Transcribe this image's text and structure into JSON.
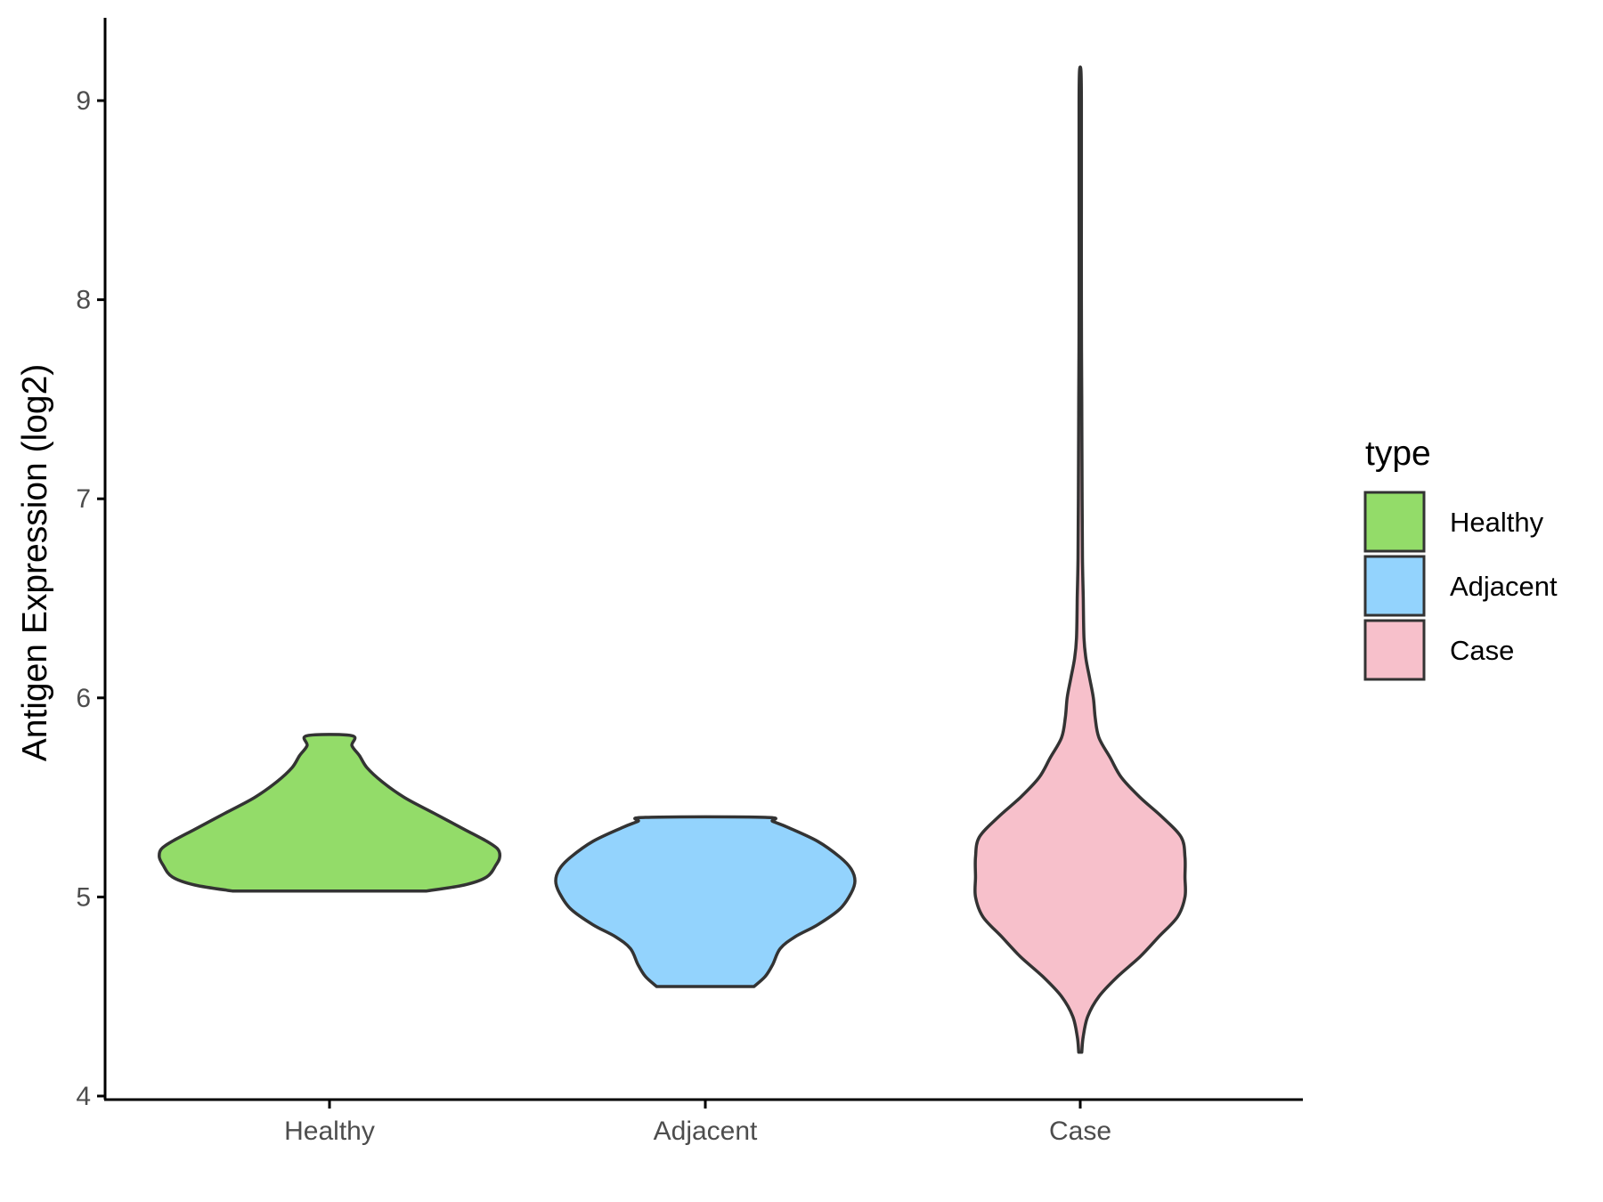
{
  "chart_data": {
    "type": "violin",
    "ylabel": "Antigen Expression (log2)",
    "xlabel": "",
    "ylim": [
      4,
      9.4
    ],
    "yticks": [
      4,
      5,
      6,
      7,
      8,
      9
    ],
    "categories": [
      "Healthy",
      "Adjacent",
      "Case"
    ],
    "grid": false,
    "legend": {
      "title": "type",
      "position": "right",
      "entries": [
        {
          "label": "Healthy",
          "color": "#93dc69"
        },
        {
          "label": "Adjacent",
          "color": "#93d3fd"
        },
        {
          "label": "Case",
          "color": "#f7c0cb"
        }
      ]
    },
    "series": [
      {
        "category": "Healthy",
        "color": "#93dc69",
        "min": 5.03,
        "max": 5.81,
        "profile": [
          [
            5.03,
            0.26
          ],
          [
            5.06,
            0.36
          ],
          [
            5.1,
            0.42
          ],
          [
            5.16,
            0.445
          ],
          [
            5.2,
            0.455
          ],
          [
            5.24,
            0.45
          ],
          [
            5.28,
            0.42
          ],
          [
            5.34,
            0.36
          ],
          [
            5.42,
            0.28
          ],
          [
            5.5,
            0.2
          ],
          [
            5.58,
            0.14
          ],
          [
            5.65,
            0.1
          ],
          [
            5.71,
            0.08
          ],
          [
            5.76,
            0.06
          ],
          [
            5.81,
            0.06
          ]
        ]
      },
      {
        "category": "Adjacent",
        "color": "#93d3fd",
        "min": 4.55,
        "max": 5.4,
        "profile": [
          [
            4.55,
            0.13
          ],
          [
            4.6,
            0.16
          ],
          [
            4.66,
            0.18
          ],
          [
            4.74,
            0.2
          ],
          [
            4.8,
            0.24
          ],
          [
            4.86,
            0.3
          ],
          [
            4.94,
            0.36
          ],
          [
            5.02,
            0.39
          ],
          [
            5.08,
            0.4
          ],
          [
            5.14,
            0.39
          ],
          [
            5.2,
            0.36
          ],
          [
            5.28,
            0.3
          ],
          [
            5.35,
            0.22
          ],
          [
            5.38,
            0.18
          ],
          [
            5.4,
            0.16
          ]
        ]
      },
      {
        "category": "Case",
        "color": "#f7c0cb",
        "min": 4.22,
        "max": 9.15,
        "profile": [
          [
            4.22,
            0.004
          ],
          [
            4.3,
            0.008
          ],
          [
            4.4,
            0.02
          ],
          [
            4.5,
            0.05
          ],
          [
            4.6,
            0.1
          ],
          [
            4.7,
            0.16
          ],
          [
            4.8,
            0.21
          ],
          [
            4.9,
            0.26
          ],
          [
            5.0,
            0.28
          ],
          [
            5.1,
            0.28
          ],
          [
            5.2,
            0.28
          ],
          [
            5.3,
            0.27
          ],
          [
            5.4,
            0.22
          ],
          [
            5.5,
            0.16
          ],
          [
            5.6,
            0.11
          ],
          [
            5.7,
            0.08
          ],
          [
            5.8,
            0.05
          ],
          [
            5.9,
            0.04
          ],
          [
            6.0,
            0.035
          ],
          [
            6.1,
            0.025
          ],
          [
            6.2,
            0.015
          ],
          [
            6.3,
            0.01
          ],
          [
            6.5,
            0.008
          ],
          [
            6.7,
            0.006
          ],
          [
            7.0,
            0.005
          ],
          [
            7.5,
            0.004
          ],
          [
            8.0,
            0.003
          ],
          [
            8.5,
            0.003
          ],
          [
            9.0,
            0.003
          ],
          [
            9.15,
            0.002
          ]
        ]
      }
    ]
  }
}
